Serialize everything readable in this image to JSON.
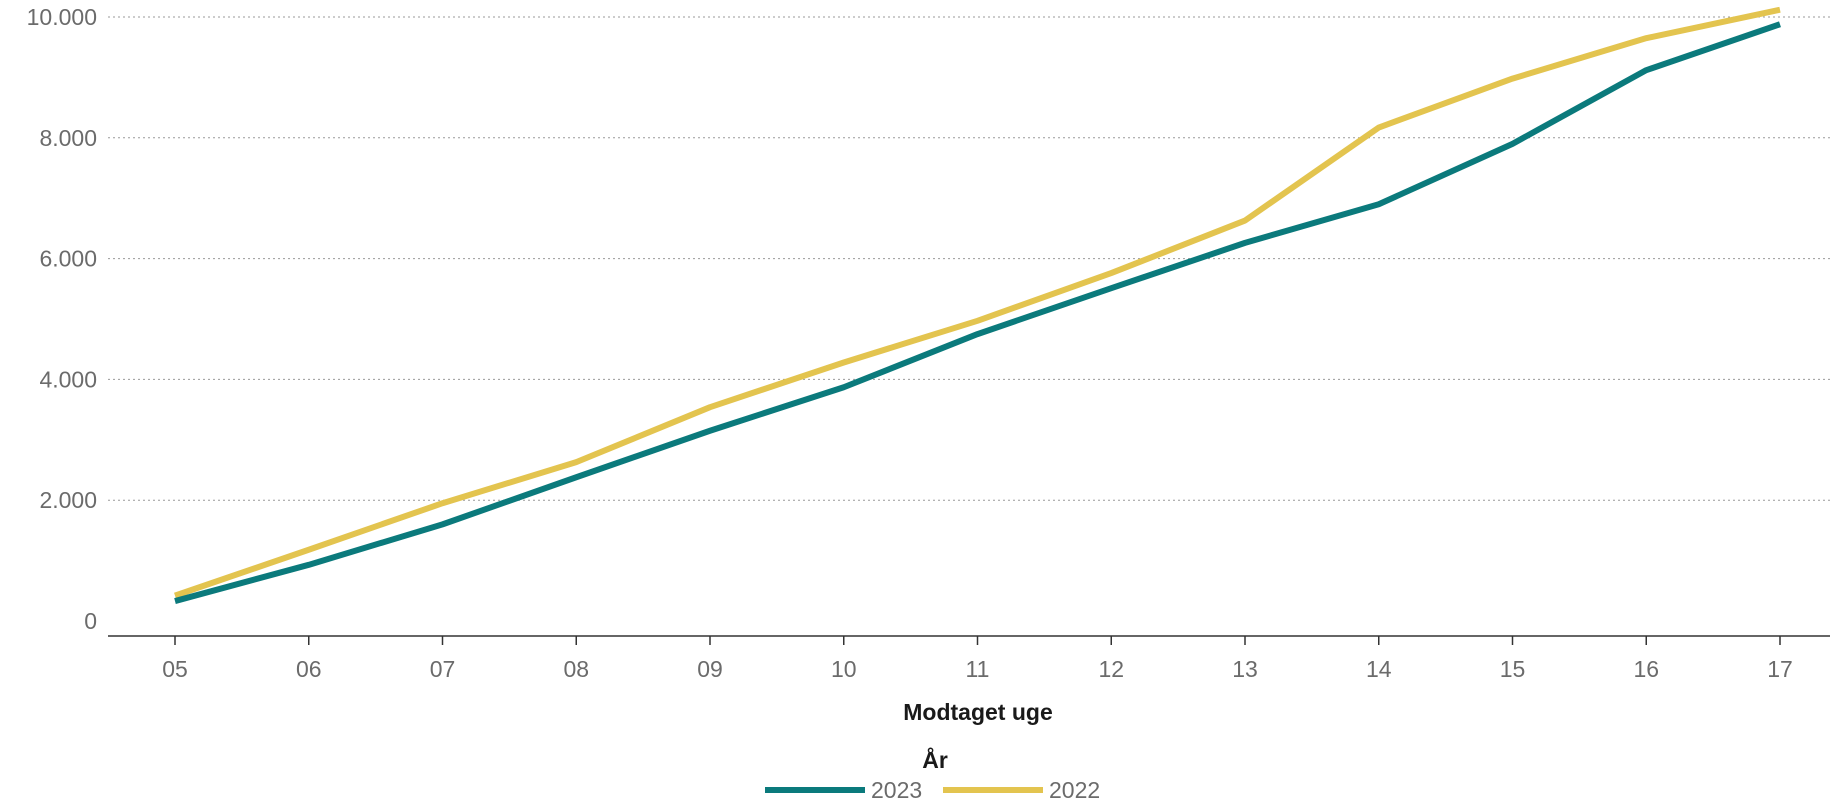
{
  "chart_data": {
    "type": "line",
    "title": "",
    "xlabel": "Modtaget uge",
    "ylabel": "",
    "categories": [
      "05",
      "06",
      "07",
      "08",
      "09",
      "10",
      "11",
      "12",
      "13",
      "14",
      "15",
      "16",
      "17"
    ],
    "y_ticks": [
      0,
      2000,
      4000,
      6000,
      8000,
      10000
    ],
    "y_tick_labels": [
      "0",
      "2.000",
      "4.000",
      "6.000",
      "8.000",
      "10.000"
    ],
    "ylim": [
      0,
      10000
    ],
    "grid": "horizontal dotted",
    "legend": {
      "title": "År",
      "position": "bottom-center"
    },
    "series": [
      {
        "name": "2023",
        "color": "#0b7a7c",
        "values": [
          330,
          930,
          1600,
          2380,
          3150,
          3870,
          4750,
          5510,
          6260,
          6900,
          7900,
          9120,
          9880
        ]
      },
      {
        "name": "2022",
        "color": "#e3c44f",
        "values": [
          420,
          1180,
          1950,
          2630,
          3540,
          4280,
          4970,
          5760,
          6630,
          8170,
          8980,
          9650,
          10120
        ]
      }
    ]
  }
}
